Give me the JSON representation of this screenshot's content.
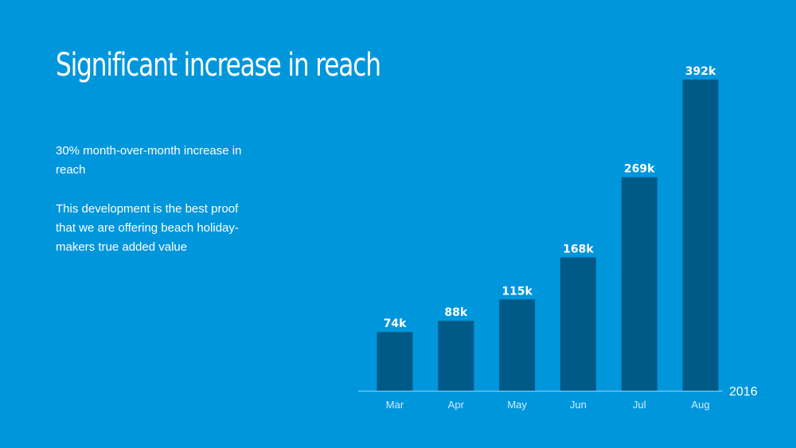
{
  "slide": {
    "title": "Significant increase in reach",
    "paragraph1": "30% month-over-month increase in reach",
    "paragraph2": "This development is the best proof that we are offering beach holiday-makers true added value"
  },
  "colors": {
    "background": "#0096dc",
    "bar": "#005a87",
    "axis": "#8fd3f3",
    "text": "#ffffff"
  },
  "chart_data": {
    "type": "bar",
    "title": "",
    "xlabel": "2016",
    "ylabel": "",
    "categories": [
      "Mar",
      "Apr",
      "May",
      "Jun",
      "Jul",
      "Aug"
    ],
    "values": [
      74,
      88,
      115,
      168,
      269,
      392
    ],
    "data_labels": [
      "74k",
      "88k",
      "115k",
      "168k",
      "269k",
      "392k"
    ],
    "ylim": [
      0,
      392
    ],
    "grid": false,
    "legend": "none"
  }
}
